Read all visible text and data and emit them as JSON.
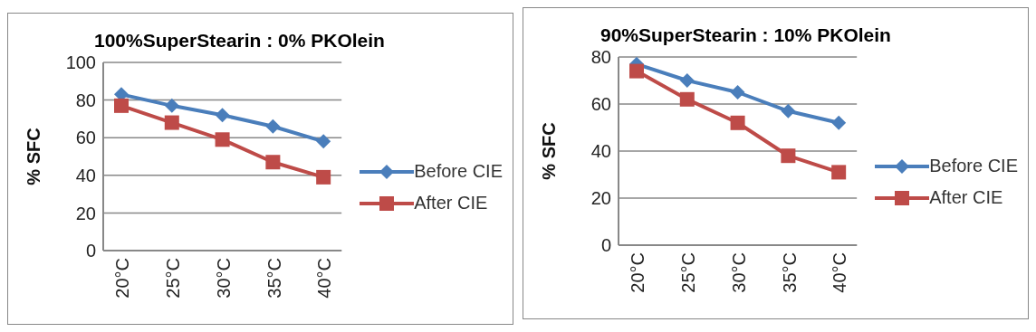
{
  "chart_data": [
    {
      "type": "line",
      "title": "100%SuperStearin : 0% PKOlein",
      "ylabel": "% SFC",
      "categories": [
        "20°C",
        "25°C",
        "30°C",
        "35°C",
        "40°C"
      ],
      "series": [
        {
          "name": "Before CIE",
          "color": "#4a7ebb",
          "marker": "diamond",
          "values": [
            83,
            77,
            72,
            66,
            58
          ]
        },
        {
          "name": "After CIE",
          "color": "#be4b48",
          "marker": "square",
          "values": [
            77,
            68,
            59,
            47,
            39
          ]
        }
      ],
      "ylim": [
        0,
        100
      ],
      "yticks": [
        0,
        20,
        40,
        60,
        80,
        100
      ],
      "grid": "y",
      "legend": "right"
    },
    {
      "type": "line",
      "title": "90%SuperStearin : 10% PKOlein",
      "ylabel": "% SFC",
      "categories": [
        "20°C",
        "25°C",
        "30°C",
        "35°C",
        "40°C"
      ],
      "series": [
        {
          "name": "Before CIE",
          "color": "#4a7ebb",
          "marker": "diamond",
          "values": [
            77,
            70,
            65,
            57,
            52
          ]
        },
        {
          "name": "After CIE",
          "color": "#be4b48",
          "marker": "square",
          "values": [
            74,
            62,
            52,
            38,
            31
          ]
        }
      ],
      "ylim": [
        0,
        80
      ],
      "yticks": [
        0,
        20,
        40,
        60,
        80
      ],
      "grid": "y",
      "legend": "right"
    }
  ]
}
